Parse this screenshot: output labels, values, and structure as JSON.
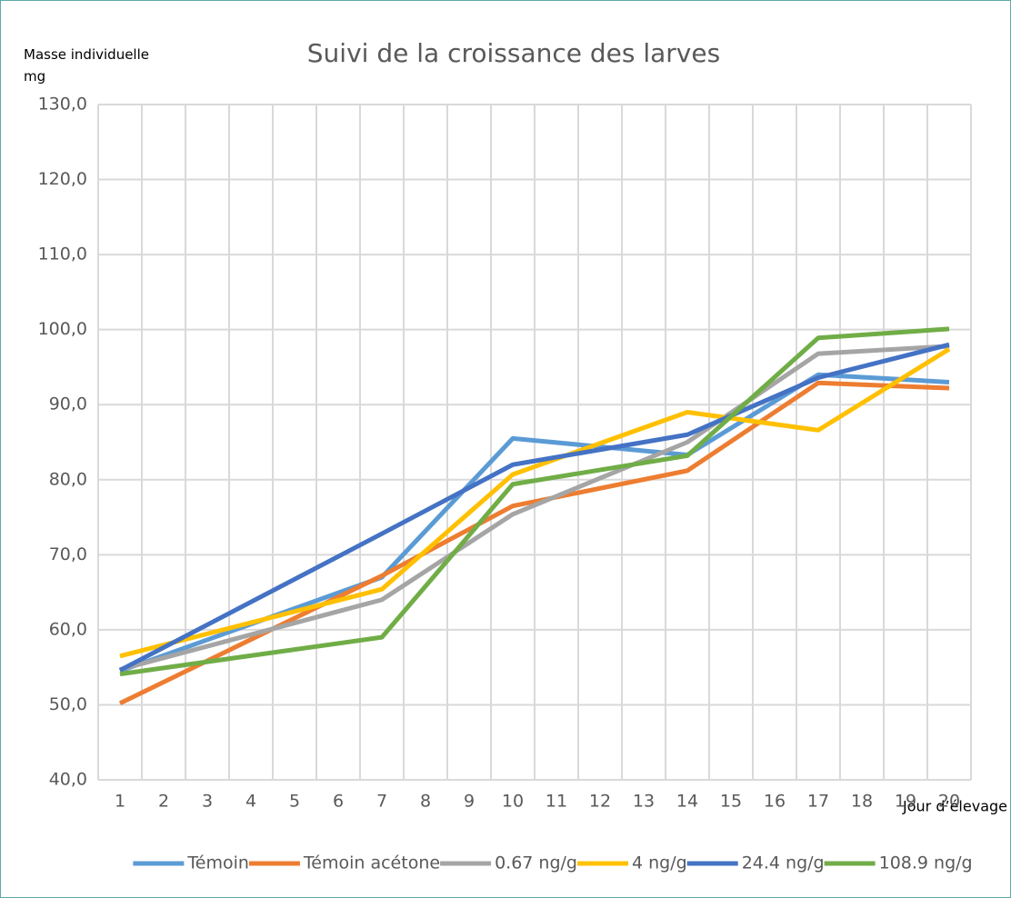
{
  "chart_data": {
    "type": "line",
    "title": "Suivi de la croissance des larves",
    "y_label": "Masse individuelle mg",
    "x_label": "Jour d’élevage",
    "x": [
      1,
      7,
      10,
      14,
      17,
      20
    ],
    "xlim": [
      0.5,
      20.5
    ],
    "xticks": [
      1,
      2,
      3,
      4,
      5,
      6,
      7,
      8,
      9,
      10,
      11,
      12,
      13,
      14,
      15,
      16,
      17,
      18,
      19,
      20
    ],
    "ylim": [
      40,
      130
    ],
    "yticks": [
      {
        "value": 40,
        "label": "40,0"
      },
      {
        "value": 50,
        "label": "50,0"
      },
      {
        "value": 60,
        "label": "60,0"
      },
      {
        "value": 70,
        "label": "70,0"
      },
      {
        "value": 80,
        "label": "80,0"
      },
      {
        "value": 90,
        "label": "90,0"
      },
      {
        "value": 100,
        "label": "100,0"
      },
      {
        "value": 110,
        "label": "110,0"
      },
      {
        "value": 120,
        "label": "120,0"
      },
      {
        "value": 130,
        "label": "130,0"
      }
    ],
    "grid": true,
    "legend": "bottom",
    "series": [
      {
        "name": "Témoin",
        "color": "#5B9BD5",
        "values": [
          54.5,
          67.0,
          85.5,
          83.3,
          94.0,
          93.0
        ]
      },
      {
        "name": "Témoin acétone",
        "color": "#ED7D31",
        "values": [
          50.2,
          67.2,
          76.5,
          81.2,
          92.9,
          92.2
        ]
      },
      {
        "name": "0.67 ng/g",
        "color": "#A5A5A5",
        "values": [
          54.7,
          64.0,
          75.4,
          85.0,
          96.8,
          97.8
        ]
      },
      {
        "name": "4 ng/g",
        "color": "#FFC000",
        "values": [
          56.5,
          65.4,
          80.7,
          89.0,
          86.6,
          97.4
        ]
      },
      {
        "name": "24.4 ng/g",
        "color": "#4472C4",
        "values": [
          54.6,
          72.8,
          82.0,
          86.0,
          93.6,
          98.0
        ]
      },
      {
        "name": "108.9 ng/g",
        "color": "#70AD47",
        "values": [
          54.1,
          59.0,
          79.4,
          83.2,
          98.9,
          100.1
        ]
      }
    ]
  }
}
